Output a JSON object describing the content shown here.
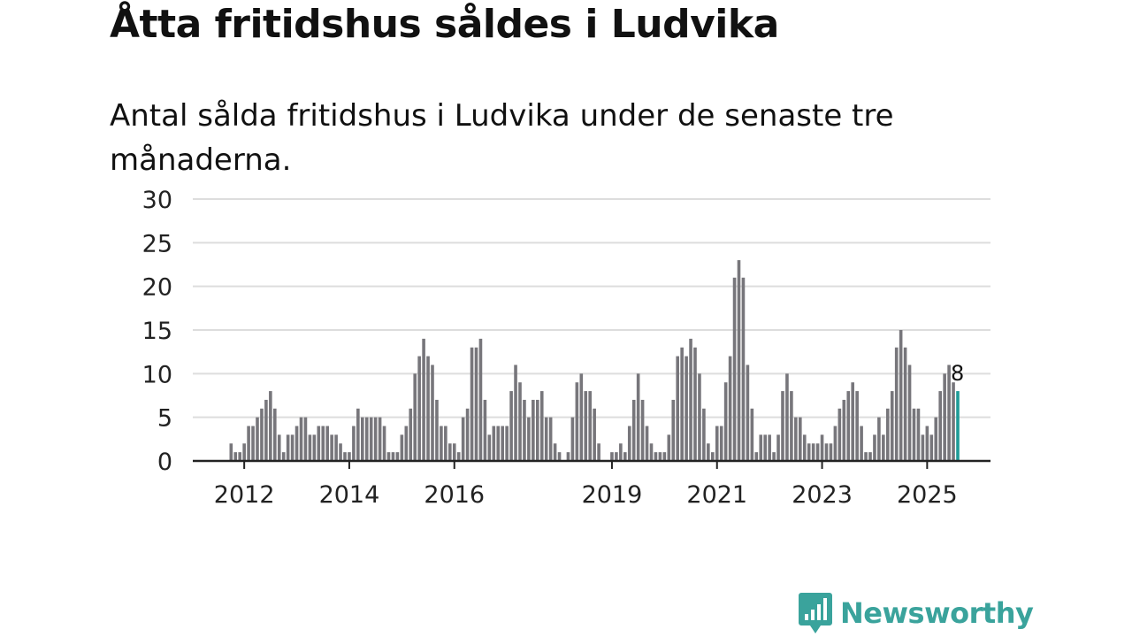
{
  "title": "Åtta fritidshus såldes i Ludvika",
  "subtitle": "Antal sålda fritidshus i Ludvika under de senaste tre månaderna.",
  "logo": {
    "text": "Newsworthy",
    "icon": "newsworthy-chart-bubble-icon"
  },
  "colors": {
    "bar": "#77767b",
    "highlight": "#1f9c98",
    "grid": "#dddddd",
    "axis": "#222222",
    "text": "#111111",
    "brand": "#3aa39c"
  },
  "chart_data": {
    "type": "bar",
    "ylim": [
      0,
      30
    ],
    "yticks": [
      0,
      5,
      10,
      15,
      20,
      25,
      30
    ],
    "xtick_labels": [
      {
        "label": "2012",
        "index": 3
      },
      {
        "label": "2014",
        "index": 27
      },
      {
        "label": "2016",
        "index": 51
      },
      {
        "label": "2019",
        "index": 87
      },
      {
        "label": "2021",
        "index": 111
      },
      {
        "label": "2023",
        "index": 135
      },
      {
        "label": "2025",
        "index": 159
      }
    ],
    "grid": true,
    "values": [
      2,
      1,
      1,
      2,
      4,
      4,
      5,
      6,
      7,
      8,
      6,
      3,
      1,
      3,
      3,
      4,
      5,
      5,
      3,
      3,
      4,
      4,
      4,
      3,
      3,
      2,
      1,
      1,
      4,
      6,
      5,
      5,
      5,
      5,
      5,
      4,
      1,
      1,
      1,
      3,
      4,
      6,
      10,
      12,
      14,
      12,
      11,
      7,
      4,
      4,
      2,
      2,
      1,
      5,
      6,
      13,
      13,
      14,
      7,
      3,
      4,
      4,
      4,
      4,
      8,
      11,
      9,
      7,
      5,
      7,
      7,
      8,
      5,
      5,
      2,
      1,
      0,
      1,
      5,
      9,
      10,
      8,
      8,
      6,
      2,
      0,
      0,
      1,
      1,
      2,
      1,
      4,
      7,
      10,
      7,
      4,
      2,
      1,
      1,
      1,
      3,
      7,
      12,
      13,
      12,
      14,
      13,
      10,
      6,
      2,
      1,
      4,
      4,
      9,
      12,
      21,
      23,
      21,
      11,
      6,
      1,
      3,
      3,
      3,
      1,
      3,
      8,
      10,
      8,
      5,
      5,
      3,
      2,
      2,
      2,
      3,
      2,
      2,
      4,
      6,
      7,
      8,
      9,
      8,
      4,
      1,
      1,
      3,
      5,
      3,
      6,
      8,
      13,
      15,
      13,
      11,
      6,
      6,
      3,
      4,
      3,
      5,
      8,
      10,
      11,
      9,
      8
    ],
    "highlight_index": 166,
    "highlight_label": "8"
  }
}
